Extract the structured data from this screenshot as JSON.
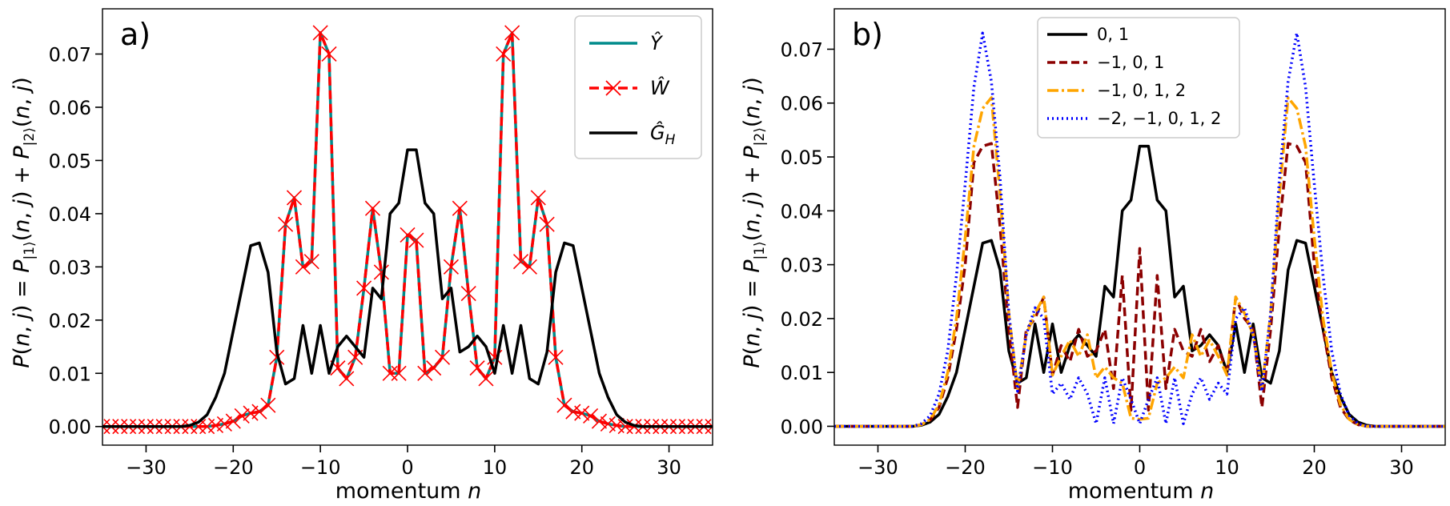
{
  "chart_data": [
    {
      "type": "line",
      "panel_label": "a)",
      "xlabel": "momentum n",
      "ylabel": "P(n,j) = P|1⟩(n,j) + P|2⟩(n,j)",
      "xlim": [
        -35,
        35
      ],
      "ylim": [
        -0.0035,
        0.0785
      ],
      "xticks": [
        -30,
        -20,
        -10,
        0,
        10,
        20,
        30
      ],
      "yticks": [
        0.0,
        0.01,
        0.02,
        0.03,
        0.04,
        0.05,
        0.06,
        0.07
      ],
      "ytick_labels": [
        "0.00",
        "0.01",
        "0.02",
        "0.03",
        "0.04",
        "0.05",
        "0.06",
        "0.07"
      ],
      "legend_position": "top-right",
      "series": [
        {
          "name": "Ŷ",
          "color": "#008B8B",
          "style": "solid",
          "marker": "none",
          "x": [
            -35,
            -34,
            -33,
            -32,
            -31,
            -30,
            -29,
            -28,
            -27,
            -26,
            -25,
            -24,
            -23,
            -22,
            -21,
            -20,
            -19,
            -18,
            -17,
            -16,
            -15,
            -14,
            -13,
            -12,
            -11,
            -10,
            -9,
            -8,
            -7,
            -6,
            -5,
            -4,
            -3,
            -2,
            -1,
            0,
            1,
            2,
            3,
            4,
            5,
            6,
            7,
            8,
            9,
            10,
            11,
            12,
            13,
            14,
            15,
            16,
            17,
            18,
            19,
            20,
            21,
            22,
            23,
            24,
            25,
            26,
            27,
            28,
            29,
            30,
            31,
            32,
            33,
            34,
            35
          ],
          "y": [
            0,
            0,
            0,
            0,
            0,
            0,
            0,
            0,
            0,
            0,
            0,
            0,
            0,
            0.0002,
            0.0005,
            0.001,
            0.002,
            0.0025,
            0.0028,
            0.004,
            0.013,
            0.038,
            0.043,
            0.03,
            0.031,
            0.074,
            0.07,
            0.011,
            0.009,
            0.013,
            0.026,
            0.041,
            0.029,
            0.01,
            0.01,
            0.036,
            0.035,
            0.01,
            0.011,
            0.013,
            0.03,
            0.041,
            0.025,
            0.011,
            0.009,
            0.013,
            0.07,
            0.074,
            0.031,
            0.03,
            0.043,
            0.038,
            0.013,
            0.004,
            0.0028,
            0.0025,
            0.002,
            0.001,
            0.0005,
            0.0002,
            0,
            0,
            0,
            0,
            0,
            0,
            0,
            0,
            0,
            0,
            0
          ]
        },
        {
          "name": "Ŵ",
          "color": "#FF0000",
          "style": "dashed",
          "marker": "x",
          "x": [
            -35,
            -34,
            -33,
            -32,
            -31,
            -30,
            -29,
            -28,
            -27,
            -26,
            -25,
            -24,
            -23,
            -22,
            -21,
            -20,
            -19,
            -18,
            -17,
            -16,
            -15,
            -14,
            -13,
            -12,
            -11,
            -10,
            -9,
            -8,
            -7,
            -6,
            -5,
            -4,
            -3,
            -2,
            -1,
            0,
            1,
            2,
            3,
            4,
            5,
            6,
            7,
            8,
            9,
            10,
            11,
            12,
            13,
            14,
            15,
            16,
            17,
            18,
            19,
            20,
            21,
            22,
            23,
            24,
            25,
            26,
            27,
            28,
            29,
            30,
            31,
            32,
            33,
            34,
            35
          ],
          "y": [
            0,
            0,
            0,
            0,
            0,
            0,
            0,
            0,
            0,
            0,
            0,
            0,
            0,
            0.0002,
            0.0005,
            0.001,
            0.002,
            0.0025,
            0.0028,
            0.004,
            0.013,
            0.038,
            0.043,
            0.03,
            0.031,
            0.074,
            0.07,
            0.011,
            0.009,
            0.013,
            0.026,
            0.041,
            0.029,
            0.01,
            0.01,
            0.036,
            0.035,
            0.01,
            0.011,
            0.013,
            0.03,
            0.041,
            0.025,
            0.011,
            0.009,
            0.013,
            0.07,
            0.074,
            0.031,
            0.03,
            0.043,
            0.038,
            0.013,
            0.004,
            0.0028,
            0.0025,
            0.002,
            0.001,
            0.0005,
            0.0002,
            0,
            0,
            0,
            0,
            0,
            0,
            0,
            0,
            0,
            0,
            0
          ]
        },
        {
          "name": "Ĝ_H",
          "color": "#000000",
          "style": "solid",
          "marker": "none",
          "x": [
            -35,
            -34,
            -33,
            -32,
            -31,
            -30,
            -29,
            -28,
            -27,
            -26,
            -25,
            -24,
            -23,
            -22,
            -21,
            -20,
            -19,
            -18,
            -17,
            -16,
            -15,
            -14,
            -13,
            -12,
            -11,
            -10,
            -9,
            -8,
            -7,
            -6,
            -5,
            -4,
            -3,
            -2,
            -1,
            0,
            1,
            2,
            3,
            4,
            5,
            6,
            7,
            8,
            9,
            10,
            11,
            12,
            13,
            14,
            15,
            16,
            17,
            18,
            19,
            20,
            21,
            22,
            23,
            24,
            25,
            26,
            27,
            28,
            29,
            30,
            31,
            32,
            33,
            34,
            35
          ],
          "y": [
            0,
            0,
            0,
            0,
            0,
            0,
            0,
            0,
            0,
            0,
            0.0002,
            0.0008,
            0.0022,
            0.0055,
            0.01,
            0.018,
            0.026,
            0.034,
            0.0345,
            0.029,
            0.014,
            0.008,
            0.009,
            0.019,
            0.01,
            0.019,
            0.01,
            0.015,
            0.017,
            0.015,
            0.013,
            0.026,
            0.024,
            0.04,
            0.042,
            0.052,
            0.052,
            0.042,
            0.04,
            0.024,
            0.026,
            0.014,
            0.015,
            0.017,
            0.015,
            0.01,
            0.019,
            0.01,
            0.019,
            0.009,
            0.008,
            0.014,
            0.029,
            0.0345,
            0.034,
            0.026,
            0.018,
            0.01,
            0.0055,
            0.0022,
            0.0008,
            0.0002,
            0,
            0,
            0,
            0,
            0,
            0,
            0,
            0,
            0
          ]
        }
      ]
    },
    {
      "type": "line",
      "panel_label": "b)",
      "xlabel": "momentum n",
      "ylabel": "P(n,j) = P|1⟩(n,j) + P|2⟩(n,j)",
      "xlim": [
        -35,
        35
      ],
      "ylim": [
        -0.0035,
        0.0775
      ],
      "xticks": [
        -30,
        -20,
        -10,
        0,
        10,
        20,
        30
      ],
      "yticks": [
        0.0,
        0.01,
        0.02,
        0.03,
        0.04,
        0.05,
        0.06,
        0.07
      ],
      "ytick_labels": [
        "0.00",
        "0.01",
        "0.02",
        "0.03",
        "0.04",
        "0.05",
        "0.06",
        "0.07"
      ],
      "legend_position": "top-center",
      "series": [
        {
          "name": "0, 1",
          "color": "#000000",
          "style": "solid",
          "x": [
            -35,
            -34,
            -33,
            -32,
            -31,
            -30,
            -29,
            -28,
            -27,
            -26,
            -25,
            -24,
            -23,
            -22,
            -21,
            -20,
            -19,
            -18,
            -17,
            -16,
            -15,
            -14,
            -13,
            -12,
            -11,
            -10,
            -9,
            -8,
            -7,
            -6,
            -5,
            -4,
            -3,
            -2,
            -1,
            0,
            1,
            2,
            3,
            4,
            5,
            6,
            7,
            8,
            9,
            10,
            11,
            12,
            13,
            14,
            15,
            16,
            17,
            18,
            19,
            20,
            21,
            22,
            23,
            24,
            25,
            26,
            27,
            28,
            29,
            30,
            31,
            32,
            33,
            34,
            35
          ],
          "y": [
            0,
            0,
            0,
            0,
            0,
            0,
            0,
            0,
            0,
            0,
            0.0002,
            0.0008,
            0.0022,
            0.0055,
            0.01,
            0.018,
            0.026,
            0.034,
            0.0345,
            0.029,
            0.014,
            0.008,
            0.009,
            0.019,
            0.01,
            0.019,
            0.01,
            0.015,
            0.017,
            0.015,
            0.013,
            0.026,
            0.024,
            0.04,
            0.042,
            0.052,
            0.052,
            0.042,
            0.04,
            0.024,
            0.026,
            0.014,
            0.015,
            0.017,
            0.015,
            0.01,
            0.019,
            0.01,
            0.019,
            0.009,
            0.008,
            0.014,
            0.029,
            0.0345,
            0.034,
            0.026,
            0.018,
            0.01,
            0.0055,
            0.0022,
            0.0008,
            0.0002,
            0,
            0,
            0,
            0,
            0,
            0,
            0,
            0,
            0
          ]
        },
        {
          "name": "−1, 0, 1",
          "color": "#8B0000",
          "style": "dashed",
          "x": [
            -35,
            -34,
            -33,
            -32,
            -31,
            -30,
            -29,
            -28,
            -27,
            -26,
            -25,
            -24,
            -23,
            -22,
            -21,
            -20,
            -19,
            -18,
            -17,
            -16,
            -15,
            -14,
            -13,
            -12,
            -11,
            -10,
            -9,
            -8,
            -7,
            -6,
            -5,
            -4,
            -3,
            -2,
            -1,
            0,
            1,
            2,
            3,
            4,
            5,
            6,
            7,
            8,
            9,
            10,
            11,
            12,
            13,
            14,
            15,
            16,
            17,
            18,
            19,
            20,
            21,
            22,
            23,
            24,
            25,
            26,
            27,
            28,
            29,
            30,
            31,
            32,
            33,
            34,
            35
          ],
          "y": [
            0,
            0,
            0,
            0,
            0,
            0,
            0,
            0,
            0,
            0,
            0.0003,
            0.0012,
            0.0035,
            0.009,
            0.018,
            0.03,
            0.049,
            0.052,
            0.0525,
            0.037,
            0.018,
            0.0035,
            0.018,
            0.02,
            0.024,
            0.0095,
            0.015,
            0.012,
            0.018,
            0.013,
            0.014,
            0.018,
            0.007,
            0.028,
            0.003,
            0.033,
            0.003,
            0.028,
            0.007,
            0.018,
            0.014,
            0.013,
            0.018,
            0.012,
            0.015,
            0.0095,
            0.024,
            0.02,
            0.018,
            0.0035,
            0.018,
            0.037,
            0.0525,
            0.052,
            0.049,
            0.03,
            0.018,
            0.009,
            0.0035,
            0.0012,
            0.0003,
            0,
            0,
            0,
            0,
            0,
            0,
            0,
            0,
            0,
            0
          ]
        },
        {
          "name": "−1, 0, 1, 2",
          "color": "#FFA500",
          "style": "dashdot",
          "x": [
            -35,
            -34,
            -33,
            -32,
            -31,
            -30,
            -29,
            -28,
            -27,
            -26,
            -25,
            -24,
            -23,
            -22,
            -21,
            -20,
            -19,
            -18,
            -17,
            -16,
            -15,
            -14,
            -13,
            -12,
            -11,
            -10,
            -9,
            -8,
            -7,
            -6,
            -5,
            -4,
            -3,
            -2,
            -1,
            0,
            1,
            2,
            3,
            4,
            5,
            6,
            7,
            8,
            9,
            10,
            11,
            12,
            13,
            14,
            15,
            16,
            17,
            18,
            19,
            20,
            21,
            22,
            23,
            24,
            25,
            26,
            27,
            28,
            29,
            30,
            31,
            32,
            33,
            34,
            35
          ],
          "y": [
            0,
            0,
            0,
            0,
            0,
            0,
            0,
            0,
            0,
            0,
            0.0003,
            0.0013,
            0.004,
            0.01,
            0.02,
            0.035,
            0.052,
            0.059,
            0.061,
            0.043,
            0.021,
            0.007,
            0.017,
            0.021,
            0.024,
            0.0095,
            0.013,
            0.016,
            0.013,
            0.017,
            0.009,
            0.011,
            0.009,
            0.008,
            0.0015,
            0.0013,
            0.0015,
            0.008,
            0.009,
            0.011,
            0.009,
            0.017,
            0.013,
            0.016,
            0.013,
            0.0095,
            0.024,
            0.021,
            0.017,
            0.007,
            0.021,
            0.043,
            0.061,
            0.059,
            0.052,
            0.035,
            0.02,
            0.01,
            0.004,
            0.0013,
            0.0003,
            0,
            0,
            0,
            0,
            0,
            0,
            0,
            0,
            0,
            0
          ]
        },
        {
          "name": "−2, −1, 0, 1, 2",
          "color": "#0000FF",
          "style": "dotted",
          "x": [
            -35,
            -34,
            -33,
            -32,
            -31,
            -30,
            -29,
            -28,
            -27,
            -26,
            -25,
            -24,
            -23,
            -22,
            -21,
            -20,
            -19,
            -18,
            -17,
            -16,
            -15,
            -14,
            -13,
            -12,
            -11,
            -10,
            -9,
            -8,
            -7,
            -6,
            -5,
            -4,
            -3,
            -2,
            -1,
            0,
            1,
            2,
            3,
            4,
            5,
            6,
            7,
            8,
            9,
            10,
            11,
            12,
            13,
            14,
            15,
            16,
            17,
            18,
            19,
            20,
            21,
            22,
            23,
            24,
            25,
            26,
            27,
            28,
            29,
            30,
            31,
            32,
            33,
            34,
            35
          ],
          "y": [
            0,
            0,
            0,
            0,
            0,
            0,
            0,
            0,
            0,
            0,
            0.0005,
            0.002,
            0.006,
            0.014,
            0.028,
            0.045,
            0.063,
            0.073,
            0.064,
            0.046,
            0.021,
            0.0065,
            0.017,
            0.022,
            0.02,
            0.006,
            0.008,
            0.005,
            0.009,
            0.006,
            0.0005,
            0.009,
            0.0005,
            0.009,
            0.005,
            0.0005,
            0.005,
            0.009,
            0.0005,
            0.009,
            0.0005,
            0.006,
            0.009,
            0.005,
            0.008,
            0.006,
            0.02,
            0.022,
            0.017,
            0.0065,
            0.021,
            0.046,
            0.064,
            0.073,
            0.063,
            0.045,
            0.028,
            0.014,
            0.006,
            0.002,
            0.0005,
            0,
            0,
            0,
            0,
            0,
            0,
            0,
            0,
            0,
            0
          ]
        }
      ]
    }
  ]
}
